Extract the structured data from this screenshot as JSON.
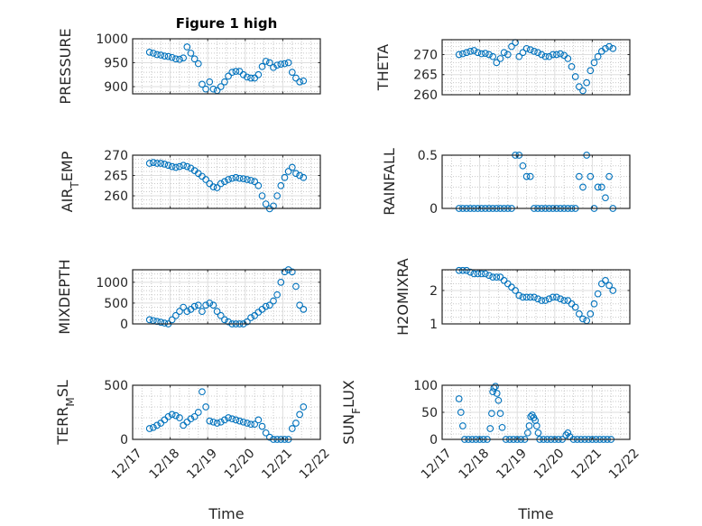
{
  "figure": {
    "xticklabels": [
      "12/17",
      "12/18",
      "12/19",
      "12/20",
      "12/21",
      "12/22"
    ],
    "marker_color": "#0072BD"
  },
  "chart_data": [
    {
      "type": "scatter",
      "title": "Figure 1 high",
      "ylabel": {
        "pre": "PRESSURE",
        "sub": "",
        "post": ""
      },
      "xlim": [
        0,
        5
      ],
      "ylim": [
        885,
        1000
      ],
      "yticks": [
        900,
        950,
        1000
      ],
      "yticklabels": [
        "900",
        "950",
        "1000"
      ],
      "x": [
        0.45,
        0.55,
        0.65,
        0.75,
        0.85,
        0.95,
        1.05,
        1.15,
        1.25,
        1.35,
        1.45,
        1.55,
        1.65,
        1.75,
        1.85,
        1.95,
        2.05,
        2.15,
        2.25,
        2.35,
        2.45,
        2.55,
        2.65,
        2.75,
        2.85,
        2.95,
        3.05,
        3.15,
        3.25,
        3.35,
        3.45,
        3.55,
        3.65,
        3.75,
        3.85,
        3.95,
        4.05,
        4.15,
        4.25,
        4.35,
        4.45,
        4.55
      ],
      "y": [
        972,
        970,
        967,
        966,
        964,
        963,
        961,
        958,
        957,
        960,
        983,
        970,
        958,
        948,
        905,
        895,
        910,
        895,
        892,
        900,
        910,
        922,
        930,
        932,
        932,
        925,
        920,
        918,
        918,
        925,
        942,
        953,
        950,
        940,
        945,
        947,
        948,
        950,
        930,
        918,
        910,
        912
      ]
    },
    {
      "type": "scatter",
      "ylabel": {
        "pre": "THETA",
        "sub": "",
        "post": ""
      },
      "xlim": [
        0,
        5
      ],
      "ylim": [
        260,
        273.7
      ],
      "yticks": [
        260,
        265,
        270
      ],
      "yticklabels": [
        "260",
        "265",
        "270"
      ],
      "x": [
        0.45,
        0.55,
        0.65,
        0.75,
        0.85,
        0.95,
        1.05,
        1.15,
        1.25,
        1.35,
        1.45,
        1.55,
        1.65,
        1.75,
        1.85,
        1.95,
        2.05,
        2.15,
        2.25,
        2.35,
        2.45,
        2.55,
        2.65,
        2.75,
        2.85,
        2.95,
        3.05,
        3.15,
        3.25,
        3.35,
        3.45,
        3.55,
        3.65,
        3.75,
        3.85,
        3.95,
        4.05,
        4.15,
        4.25,
        4.35,
        4.45,
        4.55
      ],
      "y": [
        270,
        270.2,
        270.5,
        270.8,
        271,
        270.5,
        270.2,
        270.3,
        270,
        269.5,
        268,
        269,
        270.5,
        270,
        272,
        273,
        269.5,
        270.5,
        271.5,
        271.2,
        270.8,
        270.5,
        270,
        269.5,
        269.5,
        270,
        270,
        270.2,
        269.8,
        269,
        267,
        264.5,
        262,
        261,
        263,
        266,
        268,
        269.5,
        270.8,
        271.5,
        272,
        271.5
      ]
    },
    {
      "type": "scatter",
      "ylabel": {
        "pre": "AIR",
        "sub": "T",
        "post": "EMP"
      },
      "xlim": [
        0,
        5
      ],
      "ylim": [
        256.9,
        270
      ],
      "yticks": [
        260,
        265,
        270
      ],
      "yticklabels": [
        "260",
        "265",
        "270"
      ],
      "x": [
        0.45,
        0.55,
        0.65,
        0.75,
        0.85,
        0.95,
        1.05,
        1.15,
        1.25,
        1.35,
        1.45,
        1.55,
        1.65,
        1.75,
        1.85,
        1.95,
        2.05,
        2.15,
        2.25,
        2.35,
        2.45,
        2.55,
        2.65,
        2.75,
        2.85,
        2.95,
        3.05,
        3.15,
        3.25,
        3.35,
        3.45,
        3.55,
        3.65,
        3.75,
        3.85,
        3.95,
        4.05,
        4.15,
        4.25,
        4.35,
        4.45,
        4.55
      ],
      "y": [
        268,
        268.2,
        268,
        268,
        267.8,
        267.5,
        267.2,
        267,
        267.2,
        267.5,
        267.2,
        266.8,
        266.2,
        265.5,
        264.8,
        264,
        263,
        262.2,
        262,
        263,
        263.5,
        264,
        264.3,
        264.5,
        264.3,
        264.2,
        264,
        263.8,
        263.5,
        262.5,
        260,
        258,
        256.8,
        257.5,
        260,
        262.5,
        264.5,
        266,
        267,
        265.5,
        265,
        264.5
      ]
    },
    {
      "type": "scatter",
      "ylabel": {
        "pre": "RAINFALL",
        "sub": "",
        "post": ""
      },
      "xlim": [
        0,
        5
      ],
      "ylim": [
        0,
        0.5
      ],
      "yticks": [
        0,
        0.5
      ],
      "yticklabels": [
        "0",
        "0.5"
      ],
      "x": [
        0.45,
        0.55,
        0.65,
        0.75,
        0.85,
        0.95,
        1.05,
        1.15,
        1.25,
        1.35,
        1.45,
        1.55,
        1.65,
        1.75,
        1.85,
        1.95,
        2.05,
        2.15,
        2.25,
        2.35,
        2.45,
        2.55,
        2.65,
        2.75,
        2.85,
        2.95,
        3.05,
        3.15,
        3.25,
        3.35,
        3.45,
        3.55,
        3.65,
        3.75,
        3.85,
        3.95,
        4.05,
        4.15,
        4.25,
        4.35,
        4.45,
        4.55
      ],
      "y": [
        0,
        0,
        0,
        0,
        0,
        0,
        0,
        0,
        0,
        0,
        0,
        0,
        0,
        0,
        0,
        0.5,
        0.5,
        0.4,
        0.3,
        0.3,
        0,
        0,
        0,
        0,
        0,
        0,
        0,
        0,
        0,
        0,
        0,
        0,
        0.3,
        0.2,
        0.5,
        0.3,
        0,
        0.2,
        0.2,
        0.1,
        0.3,
        0
      ]
    },
    {
      "type": "scatter",
      "ylabel": {
        "pre": "MIXDEPTH",
        "sub": "",
        "post": ""
      },
      "xlim": [
        0,
        5
      ],
      "ylim": [
        0,
        1300
      ],
      "yticks": [
        0,
        500,
        1000
      ],
      "yticklabels": [
        "0",
        "500",
        "1000"
      ],
      "x": [
        0.45,
        0.55,
        0.65,
        0.75,
        0.85,
        0.95,
        1.05,
        1.15,
        1.25,
        1.35,
        1.45,
        1.55,
        1.65,
        1.75,
        1.85,
        1.95,
        2.05,
        2.15,
        2.25,
        2.35,
        2.45,
        2.55,
        2.65,
        2.75,
        2.85,
        2.95,
        3.05,
        3.15,
        3.25,
        3.35,
        3.45,
        3.55,
        3.65,
        3.75,
        3.85,
        3.95,
        4.05,
        4.15,
        4.25,
        4.35,
        4.45,
        4.55
      ],
      "y": [
        100,
        80,
        60,
        40,
        20,
        0,
        100,
        200,
        300,
        400,
        300,
        350,
        420,
        450,
        300,
        450,
        500,
        450,
        300,
        200,
        100,
        50,
        0,
        0,
        0,
        0,
        50,
        150,
        200,
        280,
        350,
        420,
        450,
        550,
        700,
        1000,
        1250,
        1300,
        1250,
        900,
        450,
        350
      ]
    },
    {
      "type": "scatter",
      "ylabel": {
        "pre": "H2OMIXRA",
        "sub": "",
        "post": ""
      },
      "xlim": [
        0,
        5
      ],
      "ylim": [
        1,
        2.62
      ],
      "yticks": [
        1,
        2
      ],
      "yticklabels": [
        "1",
        "2"
      ],
      "x": [
        0.45,
        0.55,
        0.65,
        0.75,
        0.85,
        0.95,
        1.05,
        1.15,
        1.25,
        1.35,
        1.45,
        1.55,
        1.65,
        1.75,
        1.85,
        1.95,
        2.05,
        2.15,
        2.25,
        2.35,
        2.45,
        2.55,
        2.65,
        2.75,
        2.85,
        2.95,
        3.05,
        3.15,
        3.25,
        3.35,
        3.45,
        3.55,
        3.65,
        3.75,
        3.85,
        3.95,
        4.05,
        4.15,
        4.25,
        4.35,
        4.45,
        4.55
      ],
      "y": [
        2.6,
        2.6,
        2.6,
        2.55,
        2.5,
        2.5,
        2.5,
        2.5,
        2.45,
        2.4,
        2.4,
        2.4,
        2.3,
        2.2,
        2.1,
        2.0,
        1.85,
        1.8,
        1.8,
        1.8,
        1.8,
        1.75,
        1.7,
        1.7,
        1.75,
        1.8,
        1.8,
        1.75,
        1.7,
        1.7,
        1.6,
        1.5,
        1.3,
        1.15,
        1.1,
        1.3,
        1.6,
        1.9,
        2.2,
        2.3,
        2.15,
        2.0
      ]
    },
    {
      "type": "scatter",
      "ylabel": {
        "pre": "TERR",
        "sub": "M",
        "post": "SL"
      },
      "xlabel": "Time",
      "xlim": [
        0,
        5
      ],
      "ylim": [
        0,
        500
      ],
      "yticks": [
        0,
        500
      ],
      "yticklabels": [
        "0",
        "500"
      ],
      "x": [
        0.45,
        0.55,
        0.65,
        0.75,
        0.85,
        0.95,
        1.05,
        1.15,
        1.25,
        1.35,
        1.45,
        1.55,
        1.65,
        1.75,
        1.85,
        1.95,
        2.05,
        2.15,
        2.25,
        2.35,
        2.45,
        2.55,
        2.65,
        2.75,
        2.85,
        2.95,
        3.05,
        3.15,
        3.25,
        3.35,
        3.45,
        3.55,
        3.65,
        3.75,
        3.85,
        3.95,
        4.05,
        4.15,
        4.25,
        4.35,
        4.45,
        4.55
      ],
      "y": [
        100,
        110,
        130,
        150,
        180,
        210,
        230,
        220,
        200,
        130,
        160,
        190,
        210,
        250,
        440,
        300,
        170,
        160,
        150,
        160,
        180,
        200,
        190,
        180,
        170,
        160,
        150,
        140,
        140,
        180,
        120,
        60,
        20,
        0,
        0,
        0,
        0,
        0,
        100,
        150,
        230,
        300
      ]
    },
    {
      "type": "scatter",
      "ylabel": {
        "pre": "SUN",
        "sub": "F",
        "post": "LUX"
      },
      "xlabel": "Time",
      "xlim": [
        0,
        5
      ],
      "ylim": [
        0,
        100
      ],
      "yticks": [
        0,
        50,
        100
      ],
      "yticklabels": [
        "0",
        "50",
        "100"
      ],
      "x": [
        0.45,
        0.5,
        0.55,
        0.6,
        0.7,
        0.8,
        0.9,
        1.0,
        1.1,
        1.2,
        1.28,
        1.32,
        1.35,
        1.38,
        1.42,
        1.46,
        1.5,
        1.55,
        1.6,
        1.7,
        1.8,
        1.9,
        2.0,
        2.1,
        2.2,
        2.28,
        2.32,
        2.36,
        2.4,
        2.44,
        2.48,
        2.52,
        2.56,
        2.6,
        2.7,
        2.8,
        2.9,
        3.0,
        3.1,
        3.2,
        3.3,
        3.35,
        3.4,
        3.5,
        3.6,
        3.7,
        3.8,
        3.9,
        4.0,
        4.1,
        4.2,
        4.3,
        4.4,
        4.5
      ],
      "y": [
        75,
        50,
        25,
        0,
        0,
        0,
        0,
        0,
        0,
        0,
        20,
        48,
        88,
        95,
        98,
        85,
        72,
        48,
        22,
        0,
        0,
        0,
        0,
        0,
        0,
        12,
        25,
        42,
        45,
        40,
        35,
        25,
        12,
        0,
        0,
        0,
        0,
        0,
        0,
        0,
        8,
        12,
        5,
        0,
        0,
        0,
        0,
        0,
        0,
        0,
        0,
        0,
        0,
        0
      ]
    }
  ]
}
